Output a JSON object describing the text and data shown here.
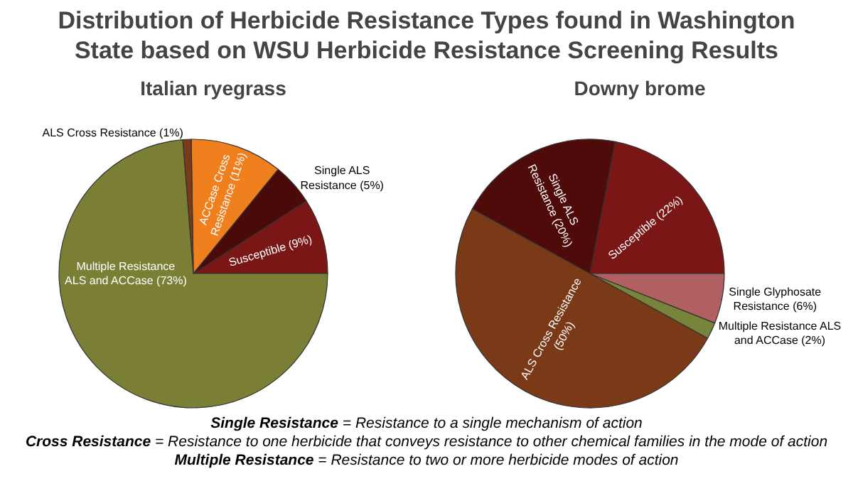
{
  "chart_data": [
    {
      "type": "pie",
      "title": "Distribution of Herbicide Resistance Types found in Washington State based on WSU Herbicide Resistance Screening Results",
      "subtitle": "Italian ryegrass",
      "categories": [
        "Susceptible",
        "Single ALS Resistance",
        "ACCase Cross Resistance",
        "ALS Cross Resistance",
        "Multiple Resistance ALS and ACCase"
      ],
      "values": [
        9,
        5,
        11,
        1,
        73
      ],
      "value_labels": [
        "(9%)",
        "(5%)",
        "(11%)",
        "(1%)",
        "(73%)"
      ],
      "colors": [
        "#7a1616",
        "#4a0a0a",
        "#f07f1e",
        "#7a3a18",
        "#7a7f35"
      ],
      "legend": false
    },
    {
      "type": "pie",
      "subtitle": "Downy brome",
      "categories": [
        "Susceptible",
        "Single ALS Resistance",
        "ALS Cross Resistance",
        "Multiple Resistance ALS and ACCase",
        "Single Glyphosate Resistance"
      ],
      "values": [
        22,
        20,
        50,
        2,
        6
      ],
      "value_labels": [
        "(22%)",
        "(20%)",
        "(50%)",
        "(2%)",
        "(6%)"
      ],
      "colors": [
        "#7a1616",
        "#4f0a0a",
        "#7a3a18",
        "#77843a",
        "#b06060"
      ],
      "legend": false,
      "annotations": [
        "Single Resistance = Resistance to a single mechanism of action",
        "Cross Resistance = Resistance to one herbicide that conveys resistance to other chemical families in the mode of action",
        "Multiple Resistance = Resistance to two or more herbicide modes of action"
      ]
    }
  ]
}
